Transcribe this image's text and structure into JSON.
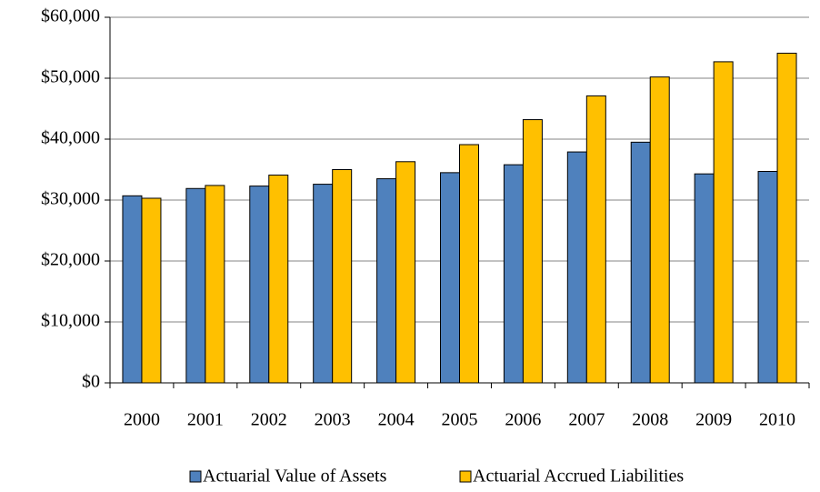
{
  "chart_data": {
    "type": "bar",
    "categories": [
      "2000",
      "2001",
      "2002",
      "2003",
      "2004",
      "2005",
      "2006",
      "2007",
      "2008",
      "2009",
      "2010"
    ],
    "series": [
      {
        "name": "Actuarial Value of Assets",
        "color": "#4f81bd",
        "values": [
          30700,
          31900,
          32300,
          32600,
          33500,
          34500,
          35800,
          37900,
          39500,
          34300,
          34700
        ]
      },
      {
        "name": "Actuarial Accrued Liabilities",
        "color": "#ffc000",
        "values": [
          30300,
          32400,
          34100,
          35000,
          36300,
          39100,
          43200,
          47100,
          50200,
          52700,
          54100
        ]
      }
    ],
    "ylim": [
      0,
      60000
    ],
    "yticks": [
      {
        "value": 0,
        "label": "$0"
      },
      {
        "value": 10000,
        "label": "$10,000"
      },
      {
        "value": 20000,
        "label": "$20,000"
      },
      {
        "value": 30000,
        "label": "$30,000"
      },
      {
        "value": 40000,
        "label": "$40,000"
      },
      {
        "value": 50000,
        "label": "$50,000"
      },
      {
        "value": 60000,
        "label": "$60,000"
      }
    ],
    "grid": true,
    "legend": "bottom"
  }
}
